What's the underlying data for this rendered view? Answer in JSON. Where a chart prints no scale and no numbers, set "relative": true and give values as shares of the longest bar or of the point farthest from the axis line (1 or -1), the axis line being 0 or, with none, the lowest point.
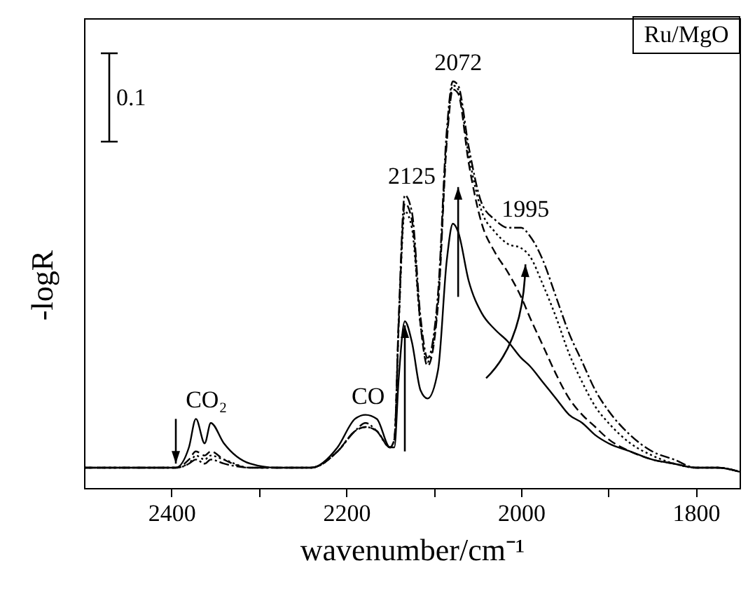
{
  "chart_data": {
    "type": "line",
    "relative": true,
    "xlabel": "wavenumber/cm⁻¹",
    "ylabel": "-logR",
    "xlim": [
      2500,
      1750
    ],
    "xticks": [
      2400,
      {
        "value": 2300,
        "label": null
      },
      2200,
      {
        "value": 2100,
        "label": null
      },
      2000,
      {
        "value": 1900,
        "label": null
      },
      1800
    ],
    "x": [
      2500,
      2420,
      2395,
      2380,
      2372,
      2362,
      2355,
      2340,
      2310,
      2280,
      2240,
      2210,
      2190,
      2178,
      2165,
      2150,
      2145,
      2140,
      2133,
      2125,
      2115,
      2107,
      2095,
      2085,
      2078,
      2072,
      2060,
      2045,
      2030,
      2015,
      2000,
      1990,
      1975,
      1960,
      1945,
      1930,
      1915,
      1900,
      1875,
      1850,
      1825,
      1800,
      1775,
      1750
    ],
    "series": [
      {
        "color": "#000000",
        "line_style": "solid",
        "values": [
          0.05,
          0.05,
          0.05,
          0.1,
          0.17,
          0.11,
          0.16,
          0.11,
          0.06,
          0.05,
          0.05,
          0.1,
          0.17,
          0.18,
          0.17,
          0.1,
          0.1,
          0.27,
          0.41,
          0.36,
          0.24,
          0.22,
          0.29,
          0.56,
          0.65,
          0.63,
          0.51,
          0.43,
          0.39,
          0.36,
          0.32,
          0.3,
          0.26,
          0.22,
          0.18,
          0.16,
          0.13,
          0.11,
          0.09,
          0.07,
          0.06,
          0.05,
          0.05,
          0.04
        ]
      },
      {
        "color": "#000000",
        "line_style": "dashed",
        "values": [
          0.05,
          0.05,
          0.05,
          0.07,
          0.09,
          0.08,
          0.09,
          0.07,
          0.05,
          0.05,
          0.05,
          0.09,
          0.14,
          0.15,
          0.14,
          0.1,
          0.12,
          0.4,
          0.7,
          0.66,
          0.4,
          0.3,
          0.45,
          0.85,
          0.98,
          0.97,
          0.8,
          0.65,
          0.58,
          0.53,
          0.47,
          0.42,
          0.35,
          0.28,
          0.22,
          0.18,
          0.15,
          0.12,
          0.09,
          0.07,
          0.06,
          0.05,
          0.05,
          0.04
        ]
      },
      {
        "color": "#000000",
        "line_style": "dotted",
        "values": [
          0.05,
          0.05,
          0.05,
          0.06,
          0.08,
          0.07,
          0.08,
          0.07,
          0.05,
          0.05,
          0.05,
          0.09,
          0.14,
          0.15,
          0.14,
          0.1,
          0.12,
          0.4,
          0.68,
          0.64,
          0.4,
          0.31,
          0.46,
          0.86,
          0.99,
          0.98,
          0.82,
          0.68,
          0.63,
          0.6,
          0.59,
          0.57,
          0.5,
          0.42,
          0.33,
          0.26,
          0.2,
          0.16,
          0.11,
          0.08,
          0.06,
          0.05,
          0.05,
          0.04
        ]
      },
      {
        "color": "#000000",
        "line_style": "dashdot",
        "values": [
          0.05,
          0.05,
          0.05,
          0.06,
          0.07,
          0.06,
          0.07,
          0.06,
          0.05,
          0.05,
          0.05,
          0.09,
          0.14,
          0.16,
          0.14,
          0.1,
          0.12,
          0.42,
          0.72,
          0.68,
          0.42,
          0.32,
          0.48,
          0.88,
          1.0,
          0.99,
          0.84,
          0.7,
          0.66,
          0.64,
          0.64,
          0.62,
          0.56,
          0.47,
          0.38,
          0.31,
          0.24,
          0.19,
          0.13,
          0.09,
          0.07,
          0.05,
          0.05,
          0.04
        ]
      }
    ],
    "annotations": [
      "0.1",
      "Ru/MgO",
      {
        "text": "2125",
        "x": 2125,
        "y": 0.72
      },
      {
        "text": "2072",
        "x": 2072,
        "y": 1.0
      },
      {
        "text": "1995",
        "x": 1995,
        "y": 0.64
      },
      {
        "text": "CO₂",
        "x": 2360,
        "y": 0.17
      },
      {
        "text": "CO",
        "x": 2175,
        "y": 0.18
      }
    ]
  }
}
